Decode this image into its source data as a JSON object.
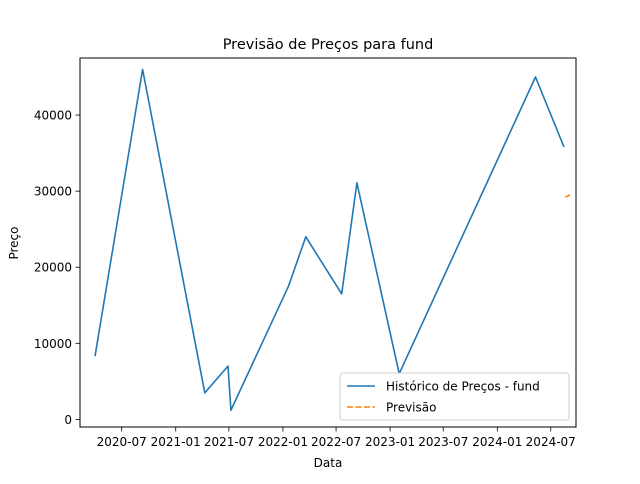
{
  "chart_data": {
    "type": "line",
    "title": "Previsão de Preços para fund",
    "xlabel": "Data",
    "ylabel": "Preço",
    "legend_position": "bottom-right",
    "grid": false,
    "xlim": [
      "2020-02-10",
      "2024-09-25"
    ],
    "ylim": [
      -1000,
      47500
    ],
    "x_ticks": [
      {
        "date": "2020-07-01",
        "label": "2020-07"
      },
      {
        "date": "2021-01-01",
        "label": "2021-01"
      },
      {
        "date": "2021-07-01",
        "label": "2021-07"
      },
      {
        "date": "2022-01-01",
        "label": "2022-01"
      },
      {
        "date": "2022-07-01",
        "label": "2022-07"
      },
      {
        "date": "2023-01-01",
        "label": "2023-01"
      },
      {
        "date": "2023-07-01",
        "label": "2023-07"
      },
      {
        "date": "2024-01-01",
        "label": "2024-01"
      },
      {
        "date": "2024-07-01",
        "label": "2024-07"
      }
    ],
    "y_ticks": [
      0,
      10000,
      20000,
      30000,
      40000
    ],
    "series": [
      {
        "name": "Histórico de Preços - fund",
        "color": "#1f77b4",
        "style": "solid",
        "points": [
          {
            "x": "2020-04-01",
            "y": 8300
          },
          {
            "x": "2020-09-10",
            "y": 46000
          },
          {
            "x": "2021-04-10",
            "y": 3500
          },
          {
            "x": "2021-06-28",
            "y": 7000
          },
          {
            "x": "2021-07-08",
            "y": 1200
          },
          {
            "x": "2022-01-20",
            "y": 17500
          },
          {
            "x": "2022-03-20",
            "y": 24000
          },
          {
            "x": "2022-07-20",
            "y": 16500
          },
          {
            "x": "2022-09-10",
            "y": 31100
          },
          {
            "x": "2023-02-01",
            "y": 6000
          },
          {
            "x": "2024-05-10",
            "y": 45000
          },
          {
            "x": "2024-08-15",
            "y": 35800
          }
        ]
      },
      {
        "name": "Previsão",
        "color": "#ff7f0e",
        "style": "dashed",
        "points": [
          {
            "x": "2024-08-20",
            "y": 29200
          },
          {
            "x": "2024-09-05",
            "y": 29500
          }
        ]
      }
    ]
  }
}
